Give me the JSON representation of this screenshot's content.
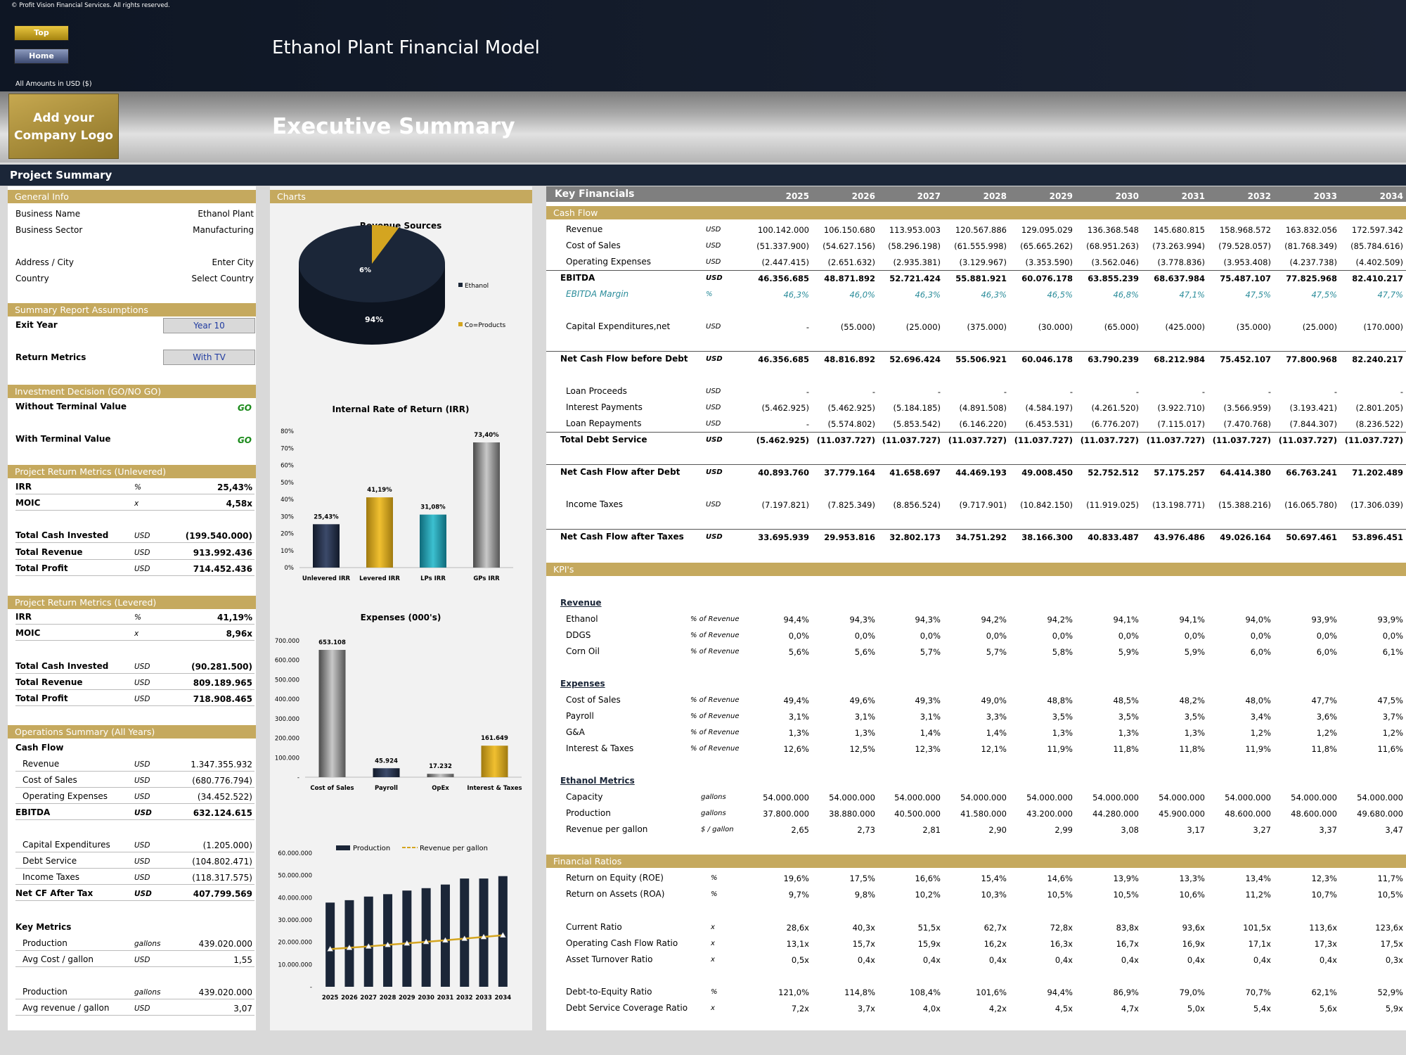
{
  "copyright": "© Profit Vision Financial Services. All rights reserved.",
  "nav": {
    "top": "Top",
    "home": "Home"
  },
  "app_title": "Ethanol Plant Financial Model",
  "amounts": "All Amounts in  USD ($)",
  "logo": {
    "line1": "Add your",
    "line2": "Company Logo"
  },
  "page_title": "Executive Summary",
  "project_summary": "Project Summary",
  "left": {
    "general_info": "General Info",
    "gi": [
      [
        "Business Name",
        "Ethanol Plant"
      ],
      [
        "Business Sector",
        "Manufacturing"
      ],
      [
        "Address / City",
        "Enter City"
      ],
      [
        "Country",
        "Select Country"
      ]
    ],
    "assumptions": "Summary  Report Assumptions",
    "exit_year_label": "Exit Year",
    "exit_year": "Year 10",
    "return_metrics_label": "Return Metrics",
    "return_metrics": "With TV",
    "investment": "Investment Decision (GO/NO GO)",
    "without_tv": "Without Terminal Value",
    "with_tv": "With Terminal Value",
    "go": "GO",
    "unlev": "Project Return Metrics (Unlevered)",
    "unlev_rows": [
      [
        "IRR",
        "%",
        "25,43%"
      ],
      [
        "MOIC",
        "x",
        "4,58x"
      ],
      [
        "Total Cash Invested",
        "USD",
        "(199.540.000)"
      ],
      [
        "Total Revenue",
        "USD",
        "913.992.436"
      ],
      [
        "Total Profit",
        "USD",
        "714.452.436"
      ]
    ],
    "lev": "Project Return Metrics (Levered)",
    "lev_rows": [
      [
        "IRR",
        "%",
        "41,19%"
      ],
      [
        "MOIC",
        "x",
        "8,96x"
      ],
      [
        "Total Cash Invested",
        "USD",
        "(90.281.500)"
      ],
      [
        "Total Revenue",
        "USD",
        "809.189.965"
      ],
      [
        "Total Profit",
        "USD",
        "718.908.465"
      ]
    ],
    "ops": "Operations Summary (All Years)",
    "cash_flow": "Cash Flow",
    "ops_rows": [
      [
        "Revenue",
        "USD",
        "1.347.355.932"
      ],
      [
        "Cost of Sales",
        "USD",
        "(680.776.794)"
      ],
      [
        "Operating Expenses",
        "USD",
        "(34.452.522)"
      ],
      [
        "EBITDA",
        "USD",
        "632.124.615"
      ],
      [
        "Capital Expenditures",
        "USD",
        "(1.205.000)"
      ],
      [
        "Debt Service",
        "USD",
        "(104.802.471)"
      ],
      [
        "Income Taxes",
        "USD",
        "(118.317.575)"
      ],
      [
        "Net CF After Tax",
        "USD",
        "407.799.569"
      ]
    ],
    "key_metrics": "Key Metrics",
    "km_rows": [
      [
        "Production",
        "gallons",
        "439.020.000"
      ],
      [
        "Avg Cost / gallon",
        "USD",
        "1,55"
      ],
      [
        "Production",
        "gallons",
        "439.020.000"
      ],
      [
        "Avg revenue / gallon",
        "USD",
        "3,07"
      ]
    ]
  },
  "charts_head": "Charts",
  "chart_data": [
    {
      "type": "pie",
      "title": "Revenue Sources",
      "labels": [
        "Ethanol",
        "Co=Products"
      ],
      "values": [
        94,
        6
      ],
      "value_labels": [
        "94%",
        "6%"
      ],
      "colors": [
        "#1b2638",
        "#d4a520"
      ]
    },
    {
      "type": "bar",
      "title": "Internal Rate of Return (IRR)",
      "categories": [
        "Unlevered IRR",
        "Levered IRR",
        "LPs IRR",
        "GPs IRR"
      ],
      "values": [
        25.43,
        41.19,
        31.08,
        73.4
      ],
      "value_labels": [
        "25,43%",
        "41,19%",
        "31,08%",
        "73,40%"
      ],
      "ylim": [
        0,
        80
      ],
      "yticks": [
        "0%",
        "10%",
        "20%",
        "30%",
        "40%",
        "50%",
        "60%",
        "70%",
        "80%"
      ]
    },
    {
      "type": "bar",
      "title": "Expenses (000's)",
      "categories": [
        "Cost of Sales",
        "Payroll",
        "OpEx",
        "Interest & Taxes"
      ],
      "values": [
        653.108,
        45.924,
        17.232,
        161.649
      ],
      "value_labels": [
        "653.108",
        "45.924",
        "17.232",
        "161.649"
      ],
      "ylim": [
        0,
        700
      ],
      "yticks": [
        "-",
        "100.000",
        "200.000",
        "300.000",
        "400.000",
        "500.000",
        "600.000",
        "700.000"
      ]
    },
    {
      "type": "bar",
      "title": "",
      "series": [
        {
          "name": "Production",
          "values": [
            37800000,
            38880000,
            40500000,
            41580000,
            43200000,
            44280000,
            45900000,
            48600000,
            48600000,
            49680000
          ]
        },
        {
          "name": "Revenue per gallon",
          "values": [
            2.65,
            2.73,
            2.81,
            2.9,
            2.99,
            3.08,
            3.17,
            3.27,
            3.37,
            3.47
          ]
        }
      ],
      "categories": [
        "2025",
        "2026",
        "2027",
        "2028",
        "2029",
        "2030",
        "2031",
        "2032",
        "2033",
        "2034"
      ],
      "ylim": [
        0,
        60000000
      ],
      "yticks": [
        "-",
        "10.000.000",
        "20.000.000",
        "30.000.000",
        "40.000.000",
        "50.000.000",
        "60.000.000"
      ]
    }
  ],
  "kf": {
    "title": "Key Financials",
    "years": [
      "2025",
      "2026",
      "2027",
      "2028",
      "2029",
      "2030",
      "2031",
      "2032",
      "2033",
      "2034"
    ],
    "cash_flow": "Cash Flow",
    "rows": [
      {
        "label": "Revenue",
        "unit": "USD",
        "v": [
          "100.142.000",
          "106.150.680",
          "113.953.003",
          "120.567.886",
          "129.095.029",
          "136.368.548",
          "145.680.815",
          "158.968.572",
          "163.832.056",
          "172.597.342"
        ]
      },
      {
        "label": "Cost of Sales",
        "unit": "USD",
        "v": [
          "(51.337.900)",
          "(54.627.156)",
          "(58.296.198)",
          "(61.555.998)",
          "(65.665.262)",
          "(68.951.263)",
          "(73.263.994)",
          "(79.528.057)",
          "(81.768.349)",
          "(85.784.616)"
        ]
      },
      {
        "label": "Operating Expenses",
        "unit": "USD",
        "v": [
          "(2.447.415)",
          "(2.651.632)",
          "(2.935.381)",
          "(3.129.967)",
          "(3.353.590)",
          "(3.562.046)",
          "(3.778.836)",
          "(3.953.408)",
          "(4.237.738)",
          "(4.402.509)"
        ]
      },
      {
        "label": "EBITDA",
        "unit": "USD",
        "bold": true,
        "v": [
          "46.356.685",
          "48.871.892",
          "52.721.424",
          "55.881.921",
          "60.076.178",
          "63.855.239",
          "68.637.984",
          "75.487.107",
          "77.825.968",
          "82.410.217"
        ]
      },
      {
        "label": "EBITDA Margin",
        "unit": "%",
        "teal": true,
        "v": [
          "46,3%",
          "46,0%",
          "46,3%",
          "46,3%",
          "46,5%",
          "46,8%",
          "47,1%",
          "47,5%",
          "47,5%",
          "47,7%"
        ]
      },
      {
        "label": "Capital Expenditures,net",
        "unit": "USD",
        "v": [
          "-",
          "(55.000)",
          "(25.000)",
          "(375.000)",
          "(30.000)",
          "(65.000)",
          "(425.000)",
          "(35.000)",
          "(25.000)",
          "(170.000)"
        ]
      },
      {
        "label": "Net Cash Flow before Debt",
        "unit": "USD",
        "bold": true,
        "v": [
          "46.356.685",
          "48.816.892",
          "52.696.424",
          "55.506.921",
          "60.046.178",
          "63.790.239",
          "68.212.984",
          "75.452.107",
          "77.800.968",
          "82.240.217"
        ]
      },
      {
        "label": "Loan Proceeds",
        "unit": "USD",
        "v": [
          "-",
          "-",
          "-",
          "-",
          "-",
          "-",
          "-",
          "-",
          "-",
          "-"
        ]
      },
      {
        "label": "Interest Payments",
        "unit": "USD",
        "v": [
          "(5.462.925)",
          "(5.462.925)",
          "(5.184.185)",
          "(4.891.508)",
          "(4.584.197)",
          "(4.261.520)",
          "(3.922.710)",
          "(3.566.959)",
          "(3.193.421)",
          "(2.801.205)"
        ]
      },
      {
        "label": "Loan Repayments",
        "unit": "USD",
        "v": [
          "-",
          "(5.574.802)",
          "(5.853.542)",
          "(6.146.220)",
          "(6.453.531)",
          "(6.776.207)",
          "(7.115.017)",
          "(7.470.768)",
          "(7.844.307)",
          "(8.236.522)"
        ]
      },
      {
        "label": "Total Debt Service",
        "unit": "USD",
        "bold": true,
        "v": [
          "(5.462.925)",
          "(11.037.727)",
          "(11.037.727)",
          "(11.037.727)",
          "(11.037.727)",
          "(11.037.727)",
          "(11.037.727)",
          "(11.037.727)",
          "(11.037.727)",
          "(11.037.727)"
        ]
      },
      {
        "label": "Net Cash Flow after Debt",
        "unit": "USD",
        "bold": true,
        "v": [
          "40.893.760",
          "37.779.164",
          "41.658.697",
          "44.469.193",
          "49.008.450",
          "52.752.512",
          "57.175.257",
          "64.414.380",
          "66.763.241",
          "71.202.489"
        ]
      },
      {
        "label": "Income Taxes",
        "unit": "USD",
        "v": [
          "(7.197.821)",
          "(7.825.349)",
          "(8.856.524)",
          "(9.717.901)",
          "(10.842.150)",
          "(11.919.025)",
          "(13.198.771)",
          "(15.388.216)",
          "(16.065.780)",
          "(17.306.039)"
        ]
      },
      {
        "label": "Net Cash Flow after Taxes",
        "unit": "USD",
        "bold": true,
        "v": [
          "33.695.939",
          "29.953.816",
          "32.802.173",
          "34.751.292",
          "38.166.300",
          "40.833.487",
          "43.976.486",
          "49.026.164",
          "50.697.461",
          "53.896.451"
        ]
      }
    ],
    "kpis": "KPI's",
    "revenue": "Revenue",
    "rev_rows": [
      {
        "label": "Ethanol",
        "unit": "% of Revenue",
        "v": [
          "94,4%",
          "94,3%",
          "94,3%",
          "94,2%",
          "94,2%",
          "94,1%",
          "94,1%",
          "94,0%",
          "93,9%",
          "93,9%"
        ]
      },
      {
        "label": "DDGS",
        "unit": "% of Revenue",
        "v": [
          "0,0%",
          "0,0%",
          "0,0%",
          "0,0%",
          "0,0%",
          "0,0%",
          "0,0%",
          "0,0%",
          "0,0%",
          "0,0%"
        ]
      },
      {
        "label": "Corn Oil",
        "unit": "% of Revenue",
        "v": [
          "5,6%",
          "5,6%",
          "5,7%",
          "5,7%",
          "5,8%",
          "5,9%",
          "5,9%",
          "6,0%",
          "6,0%",
          "6,1%"
        ]
      }
    ],
    "expenses": "Expenses",
    "exp_rows": [
      {
        "label": "Cost of Sales",
        "unit": "% of Revenue",
        "v": [
          "49,4%",
          "49,6%",
          "49,3%",
          "49,0%",
          "48,8%",
          "48,5%",
          "48,2%",
          "48,0%",
          "47,7%",
          "47,5%"
        ]
      },
      {
        "label": "Payroll",
        "unit": "% of Revenue",
        "v": [
          "3,1%",
          "3,1%",
          "3,1%",
          "3,3%",
          "3,5%",
          "3,5%",
          "3,5%",
          "3,4%",
          "3,6%",
          "3,7%"
        ]
      },
      {
        "label": "G&A",
        "unit": "% of Revenue",
        "v": [
          "1,3%",
          "1,3%",
          "1,4%",
          "1,4%",
          "1,3%",
          "1,3%",
          "1,3%",
          "1,2%",
          "1,2%",
          "1,2%"
        ]
      },
      {
        "label": "Interest & Taxes",
        "unit": "% of Revenue",
        "v": [
          "12,6%",
          "12,5%",
          "12,3%",
          "12,1%",
          "11,9%",
          "11,8%",
          "11,8%",
          "11,9%",
          "11,8%",
          "11,6%"
        ]
      }
    ],
    "ethanol": "Ethanol Metrics",
    "eth_rows": [
      {
        "label": "Capacity",
        "unit": "gallons",
        "v": [
          "54.000.000",
          "54.000.000",
          "54.000.000",
          "54.000.000",
          "54.000.000",
          "54.000.000",
          "54.000.000",
          "54.000.000",
          "54.000.000",
          "54.000.000"
        ]
      },
      {
        "label": "Production",
        "unit": "gallons",
        "v": [
          "37.800.000",
          "38.880.000",
          "40.500.000",
          "41.580.000",
          "43.200.000",
          "44.280.000",
          "45.900.000",
          "48.600.000",
          "48.600.000",
          "49.680.000"
        ]
      },
      {
        "label": "Revenue per gallon",
        "unit": "$ / gallon",
        "v": [
          "2,65",
          "2,73",
          "2,81",
          "2,90",
          "2,99",
          "3,08",
          "3,17",
          "3,27",
          "3,37",
          "3,47"
        ]
      }
    ],
    "ratios": "Financial Ratios",
    "ratio_rows": [
      {
        "label": "Return on Equity (ROE)",
        "unit": "%",
        "v": [
          "19,6%",
          "17,5%",
          "16,6%",
          "15,4%",
          "14,6%",
          "13,9%",
          "13,3%",
          "13,4%",
          "12,3%",
          "11,7%"
        ]
      },
      {
        "label": "Return on Assets (ROA)",
        "unit": "%",
        "v": [
          "9,7%",
          "9,8%",
          "10,2%",
          "10,3%",
          "10,5%",
          "10,5%",
          "10,6%",
          "11,2%",
          "10,7%",
          "10,5%"
        ]
      },
      {
        "label": "Current Ratio",
        "unit": "x",
        "v": [
          "28,6x",
          "40,3x",
          "51,5x",
          "62,7x",
          "72,8x",
          "83,8x",
          "93,6x",
          "101,5x",
          "113,6x",
          "123,6x"
        ]
      },
      {
        "label": "Operating Cash Flow Ratio",
        "unit": "x",
        "v": [
          "13,1x",
          "15,7x",
          "15,9x",
          "16,2x",
          "16,3x",
          "16,7x",
          "16,9x",
          "17,1x",
          "17,3x",
          "17,5x"
        ]
      },
      {
        "label": "Asset Turnover Ratio",
        "unit": "x",
        "v": [
          "0,5x",
          "0,4x",
          "0,4x",
          "0,4x",
          "0,4x",
          "0,4x",
          "0,4x",
          "0,4x",
          "0,4x",
          "0,3x"
        ]
      },
      {
        "label": "Debt-to-Equity Ratio",
        "unit": "%",
        "v": [
          "121,0%",
          "114,8%",
          "108,4%",
          "101,6%",
          "94,4%",
          "86,9%",
          "79,0%",
          "70,7%",
          "62,1%",
          "52,9%"
        ]
      },
      {
        "label": "Debt Service Coverage Ratio",
        "unit": "x",
        "v": [
          "7,2x",
          "3,7x",
          "4,0x",
          "4,2x",
          "4,5x",
          "4,7x",
          "5,0x",
          "5,4x",
          "5,6x",
          "5,9x"
        ]
      }
    ]
  }
}
